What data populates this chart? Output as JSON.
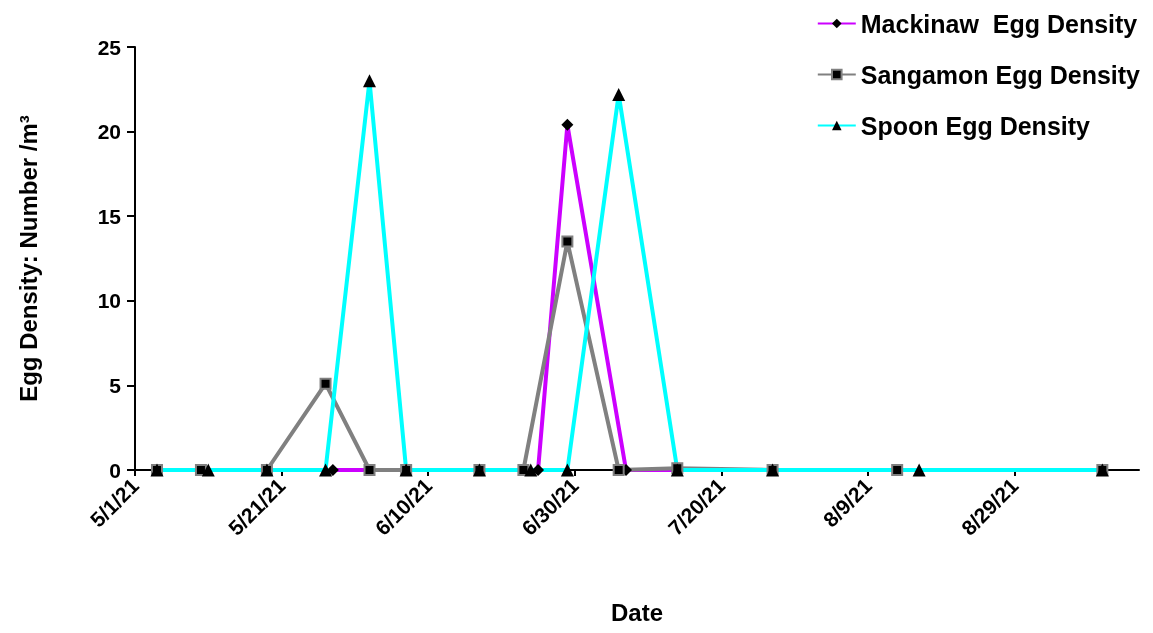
{
  "chart_data": {
    "type": "line",
    "xlabel": "Date",
    "ylabel": "Egg Density: Number /m³",
    "legend": "top right",
    "grid": false,
    "xlim": [
      "2021-05-01",
      "2021-09-15"
    ],
    "xticks": [
      {
        "value": "2021-05-01",
        "label": "5/1/21"
      },
      {
        "value": "2021-05-21",
        "label": "5/21/21"
      },
      {
        "value": "2021-06-10",
        "label": "6/10/21"
      },
      {
        "value": "2021-06-30",
        "label": "6/30/21"
      },
      {
        "value": "2021-07-20",
        "label": "7/20/21"
      },
      {
        "value": "2021-08-09",
        "label": "8/9/21"
      },
      {
        "value": "2021-08-29",
        "label": "8/29/21"
      }
    ],
    "ylim": [
      0,
      25
    ],
    "yticks": [
      0,
      5,
      10,
      15,
      20,
      25
    ],
    "series": [
      {
        "name": "Mackinaw  Egg Density",
        "color": "#cc00ff",
        "marker": "diamond",
        "x": [
          "2021-05-28",
          "2021-06-02",
          "2021-06-25",
          "2021-06-29",
          "2021-07-07",
          "2021-07-14"
        ],
        "values": [
          0,
          0,
          0,
          20.4,
          0,
          0
        ]
      },
      {
        "name": "Sangamon Egg Density",
        "color": "#808080",
        "marker": "square",
        "x": [
          "2021-05-04",
          "2021-05-10",
          "2021-05-19",
          "2021-05-27",
          "2021-06-02",
          "2021-06-07",
          "2021-06-17",
          "2021-06-23",
          "2021-06-29",
          "2021-07-06",
          "2021-07-14",
          "2021-07-27",
          "2021-08-13",
          "2021-09-10"
        ],
        "values": [
          0,
          0,
          0,
          5.1,
          0,
          0,
          0,
          0,
          13.5,
          0,
          0.1,
          0,
          0,
          0
        ]
      },
      {
        "name": "Spoon Egg Density",
        "color": "#00ffff",
        "marker": "triangle",
        "x": [
          "2021-05-04",
          "2021-05-11",
          "2021-05-19",
          "2021-05-27",
          "2021-06-02",
          "2021-06-07",
          "2021-06-17",
          "2021-06-24",
          "2021-06-29",
          "2021-07-06",
          "2021-07-14",
          "2021-07-27",
          "2021-08-16",
          "2021-09-10"
        ],
        "values": [
          0,
          0,
          0,
          0,
          23,
          0,
          0,
          0,
          0,
          22.2,
          0,
          0,
          0,
          0
        ]
      }
    ]
  }
}
